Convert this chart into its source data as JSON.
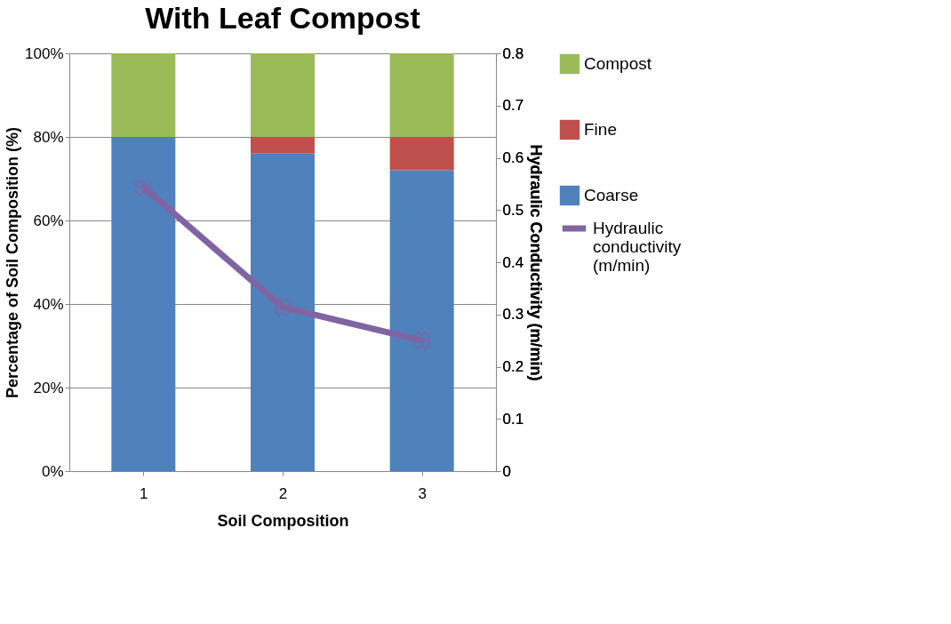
{
  "chart_data": {
    "type": "bar",
    "title": "With Leaf Compost",
    "xlabel": "Soil Composition",
    "ylabel": "Percentage of Soil Composition (%)",
    "y2label": "Hydraulic Conductivity (m/min)",
    "categories": [
      "1",
      "2",
      "3"
    ],
    "stacked": true,
    "series": [
      {
        "name": "Coarse",
        "color": "#4f81bd",
        "values": [
          80,
          76,
          72
        ]
      },
      {
        "name": "Fine",
        "color": "#c0504d",
        "values": [
          0,
          4,
          8
        ]
      },
      {
        "name": "Compost",
        "color": "#9bbb59",
        "values": [
          20,
          20,
          20
        ]
      },
      {
        "name": "Hydraulic conductivity (m/min)",
        "type": "line",
        "axis": "y2",
        "color": "#8064a2",
        "marker": "cross",
        "values": [
          0.544,
          0.314,
          0.25
        ]
      }
    ],
    "ylim": [
      0,
      100
    ],
    "yticks": [
      {
        "value": 0,
        "label": "0%"
      },
      {
        "value": 20,
        "label": "20%"
      },
      {
        "value": 40,
        "label": "40%"
      },
      {
        "value": 60,
        "label": "60%"
      },
      {
        "value": 80,
        "label": "80%"
      },
      {
        "value": 100,
        "label": "100%"
      }
    ],
    "y2lim": [
      0,
      0.8
    ],
    "y2ticks": [
      0,
      0.1,
      0.2,
      0.3,
      0.4,
      0.5,
      0.6,
      0.7,
      0.8
    ],
    "grid": "y",
    "legend": "right"
  }
}
